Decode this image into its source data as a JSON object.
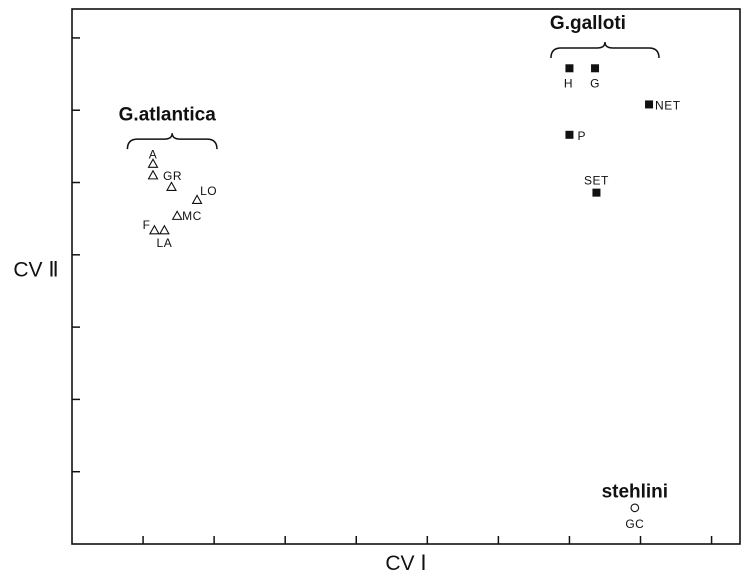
{
  "chart_data": {
    "type": "scatter",
    "title": "",
    "xlabel": "CV Ⅰ",
    "ylabel": "CV Ⅱ",
    "xlim": [
      0,
      47
    ],
    "ylim": [
      0,
      37
    ],
    "grid": false,
    "legend": "none",
    "x_ticks": [
      5,
      10,
      15,
      20,
      25,
      30,
      35,
      40,
      45
    ],
    "y_ticks": [
      5,
      10,
      15,
      20,
      25,
      30,
      35
    ],
    "groups": [
      {
        "name": "G.atlantica",
        "marker": "triangle-open",
        "points": [
          {
            "label": "A",
            "x": 5.7,
            "y": 26.3
          },
          {
            "label": "",
            "x": 5.7,
            "y": 25.5
          },
          {
            "label": "GR",
            "x": 7.0,
            "y": 24.7
          },
          {
            "label": "LO",
            "x": 8.8,
            "y": 23.8
          },
          {
            "label": "MC",
            "x": 7.4,
            "y": 22.7
          },
          {
            "label": "F",
            "x": 5.8,
            "y": 21.7
          },
          {
            "label": "LA",
            "x": 6.5,
            "y": 21.7
          }
        ]
      },
      {
        "name": "G.galloti",
        "marker": "square-filled",
        "points": [
          {
            "label": "H",
            "x": 35.0,
            "y": 32.9
          },
          {
            "label": "G",
            "x": 36.8,
            "y": 32.9
          },
          {
            "label": "NET",
            "x": 40.6,
            "y": 30.4
          },
          {
            "label": "P",
            "x": 35.0,
            "y": 28.3
          },
          {
            "label": "SET",
            "x": 36.9,
            "y": 24.3
          }
        ]
      },
      {
        "name": "stehlini",
        "marker": "circle-open",
        "points": [
          {
            "label": "GC",
            "x": 39.6,
            "y": 2.5
          }
        ]
      }
    ]
  }
}
